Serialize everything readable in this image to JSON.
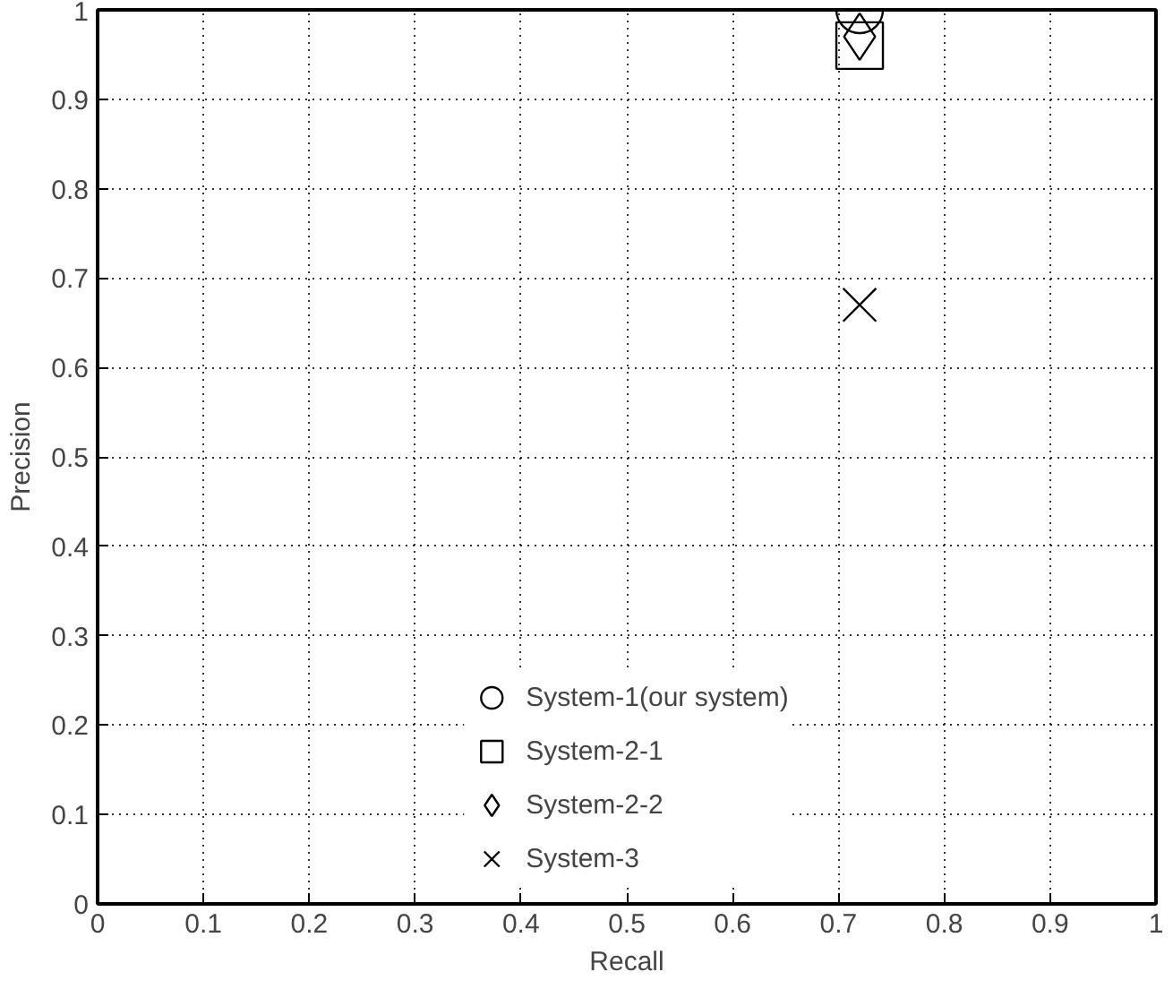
{
  "chart_data": {
    "type": "scatter",
    "xlabel": "Recall",
    "ylabel": "Precision",
    "xlim": [
      0,
      1
    ],
    "ylim": [
      0,
      1
    ],
    "xticks": [
      0,
      0.1,
      0.2,
      0.3,
      0.4,
      0.5,
      0.6,
      0.7,
      0.8,
      0.9,
      1
    ],
    "yticks": [
      0,
      0.1,
      0.2,
      0.3,
      0.4,
      0.5,
      0.6,
      0.7,
      0.8,
      0.9,
      1
    ],
    "grid": true,
    "legend": "bottom",
    "x": [
      0.72
    ],
    "series": [
      {
        "name": "System-1(our system)",
        "color": "#000000",
        "marker": "circle",
        "values": [
          1.0
        ]
      },
      {
        "name": "System-2-1",
        "color": "#000000",
        "marker": "square",
        "values": [
          0.96
        ]
      },
      {
        "name": "System-2-2",
        "color": "#000000",
        "marker": "diamond",
        "values": [
          0.97
        ]
      },
      {
        "name": "System-3",
        "color": "#000000",
        "marker": "cross",
        "values": [
          0.67
        ]
      }
    ]
  }
}
